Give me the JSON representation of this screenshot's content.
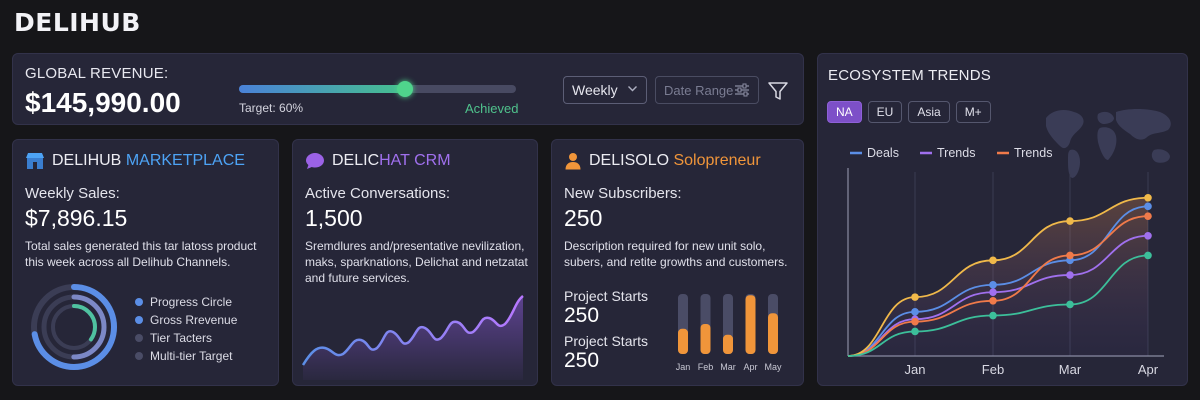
{
  "brand": {
    "logo": "DELIHUB"
  },
  "revenue": {
    "label": "GLOBAL REVENUE:",
    "value": "$145,990.00",
    "progress": 0.6,
    "target_label": "Target: 60%",
    "achieved_label": "Achieved",
    "period_select": "Weekly",
    "date_placeholder": "Date Range"
  },
  "marketplace": {
    "title_a": "DELIHUB",
    "title_b": "MARKETPLACE",
    "accent": "#4da3f5",
    "metric_label": "Weekly Sales:",
    "metric_value": "$7,896.15",
    "description": "Total sales generated this tar latoss product this week across all Delihub Channels.",
    "legend": [
      {
        "label": "Progress Circle",
        "color": "#5b8ee6"
      },
      {
        "label": "Gross Rrevenue",
        "color": "#5b8ee6"
      },
      {
        "label": "Tier Tacters",
        "color": "#4a4c66"
      },
      {
        "label": "Multi-tier Target",
        "color": "#4a4c66"
      }
    ],
    "rings": [
      0.72,
      0.5,
      0.35
    ]
  },
  "crm": {
    "title_a": "DELIC",
    "title_b": "HAT CRM",
    "accent": "#a070ee",
    "metric_label": "Active Conversations:",
    "metric_value": "1,500",
    "description": "Sremdlures and/presentative nevilization, maks, sparknations, Delichat and netzatat and future services."
  },
  "solo": {
    "title_a": "DELISOLO",
    "title_b": "Solopreneur",
    "accent": "#f0953a",
    "metric_label": "New Subscribers:",
    "metric_value": "250",
    "description": "Description required for new unit solo, subers, and retite growths and customers.",
    "project_starts": [
      {
        "label": "Project Starts",
        "value": "250"
      },
      {
        "label": "Project Starts",
        "value": "250"
      }
    ],
    "bars": {
      "months": [
        "Jan",
        "Feb",
        "Mar",
        "Apr",
        "May"
      ],
      "values": [
        0.42,
        0.5,
        0.32,
        0.98,
        0.68
      ]
    }
  },
  "trends": {
    "title": "ECOSYSTEM TRENDS",
    "tabs": [
      "NA",
      "EU",
      "Asia",
      "M+"
    ],
    "active_tab": "NA",
    "chart_data": {
      "type": "line",
      "x": [
        "Jan",
        "Feb",
        "Mar",
        "Apr"
      ],
      "series": [
        {
          "name": "Deals",
          "color": "#5b8ee6",
          "values": [
            0.36,
            0.58,
            0.78,
            1.22
          ]
        },
        {
          "name": "Trends",
          "color": "#a070ee",
          "values": [
            0.3,
            0.52,
            0.66,
            0.98
          ]
        },
        {
          "name": "Trends",
          "color": "#f07a4a",
          "values": [
            0.28,
            0.45,
            0.82,
            1.14
          ]
        },
        {
          "name": "",
          "color": "#f0b94a",
          "values": [
            0.48,
            0.78,
            1.1,
            1.29
          ]
        },
        {
          "name": "",
          "color": "#3cbf9a",
          "values": [
            0.2,
            0.33,
            0.42,
            0.82
          ]
        }
      ],
      "ylim": [
        0,
        1.5
      ],
      "grid": true
    }
  }
}
